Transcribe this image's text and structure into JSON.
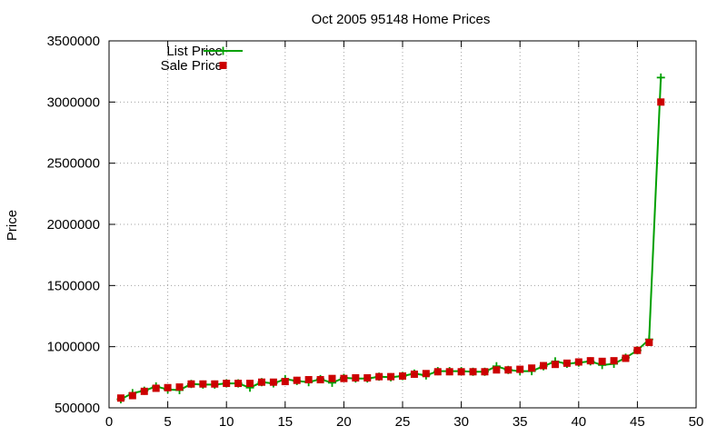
{
  "chart_data": {
    "type": "line",
    "title": "Oct 2005 95148 Home Prices",
    "xlabel": "",
    "ylabel": "Price",
    "xlim": [
      0,
      50
    ],
    "ylim": [
      500000,
      3500000
    ],
    "xticks": [
      0,
      5,
      10,
      15,
      20,
      25,
      30,
      35,
      40,
      45,
      50
    ],
    "yticks": [
      500000,
      1000000,
      1500000,
      2000000,
      2500000,
      3000000,
      3500000
    ],
    "xtick_labels": [
      "0",
      "5",
      "10",
      "15",
      "20",
      "25",
      "30",
      "35",
      "40",
      "45",
      "50"
    ],
    "ytick_labels": [
      "500000",
      "1000000",
      "1500000",
      "2000000",
      "2500000",
      "3000000",
      "3500000"
    ],
    "grid": true,
    "legend": "top-left",
    "series": [
      {
        "name": "List Price",
        "style": "line-plus",
        "color": "#00a000",
        "x": [
          1,
          2,
          3,
          4,
          5,
          6,
          7,
          8,
          9,
          10,
          11,
          12,
          13,
          14,
          15,
          16,
          17,
          18,
          19,
          20,
          21,
          22,
          23,
          24,
          25,
          26,
          27,
          28,
          29,
          30,
          31,
          32,
          33,
          34,
          35,
          36,
          37,
          38,
          39,
          40,
          41,
          42,
          43,
          44,
          45,
          46,
          47
        ],
        "values": [
          570000,
          620000,
          640000,
          675000,
          650000,
          645000,
          695000,
          690000,
          690000,
          700000,
          700000,
          665000,
          710000,
          700000,
          735000,
          720000,
          710000,
          735000,
          705000,
          745000,
          740000,
          740000,
          755000,
          750000,
          760000,
          780000,
          765000,
          800000,
          800000,
          800000,
          795000,
          795000,
          840000,
          810000,
          800000,
          800000,
          840000,
          880000,
          860000,
          870000,
          880000,
          850000,
          860000,
          910000,
          970000,
          1060000,
          3200000
        ]
      },
      {
        "name": "Sale Price",
        "style": "square-markers",
        "color": "#cc0000",
        "x": [
          1,
          2,
          3,
          4,
          5,
          6,
          7,
          8,
          9,
          10,
          11,
          12,
          13,
          14,
          15,
          16,
          17,
          18,
          19,
          20,
          21,
          22,
          23,
          24,
          25,
          26,
          27,
          28,
          29,
          30,
          31,
          32,
          33,
          34,
          35,
          36,
          37,
          38,
          39,
          40,
          41,
          42,
          43,
          44,
          45,
          46,
          47
        ],
        "values": [
          580000,
          600000,
          635000,
          660000,
          665000,
          670000,
          695000,
          695000,
          695000,
          700000,
          700000,
          700000,
          710000,
          710000,
          715000,
          725000,
          730000,
          730000,
          740000,
          740000,
          745000,
          745000,
          755000,
          755000,
          760000,
          775000,
          780000,
          795000,
          795000,
          795000,
          795000,
          795000,
          810000,
          810000,
          815000,
          825000,
          845000,
          855000,
          865000,
          875000,
          885000,
          880000,
          885000,
          905000,
          970000,
          1035000,
          3000000
        ]
      }
    ]
  }
}
